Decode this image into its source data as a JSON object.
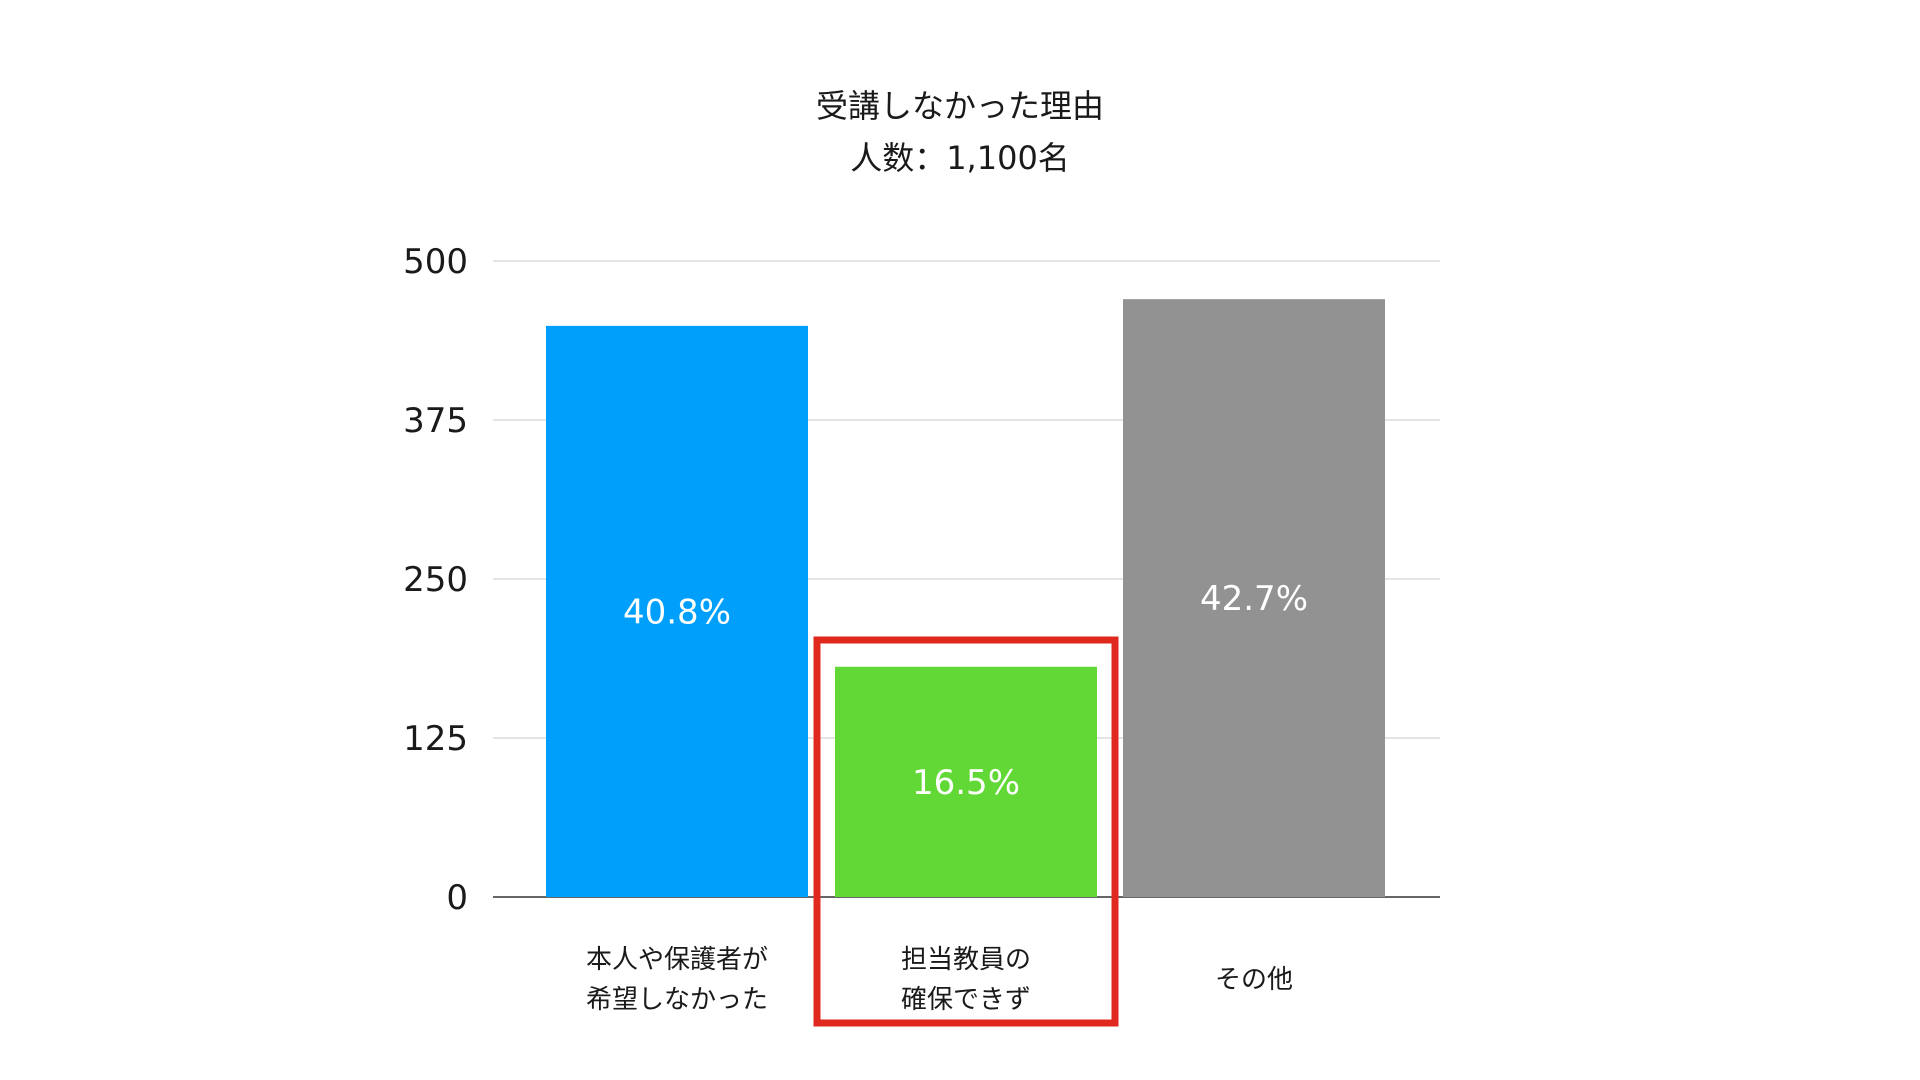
{
  "chart_data": {
    "type": "bar",
    "title": "受講しなかった理由",
    "subtitle": "人数：1,100名",
    "categories": [
      [
        "本人や保護者が",
        "希望しなかった"
      ],
      [
        "担当教員の",
        "確保できず"
      ],
      [
        "その他"
      ]
    ],
    "values": [
      449,
      181,
      470
    ],
    "data_labels": [
      "40.8%",
      "16.5%",
      "42.7%"
    ],
    "colors": [
      "#009ffc",
      "#61d836",
      "#929292"
    ],
    "ylim": [
      0,
      500
    ],
    "yticks": [
      0,
      125,
      250,
      375,
      500
    ],
    "grid": true,
    "xlabel": "",
    "ylabel": "",
    "highlight": {
      "category_index": 1,
      "color": "#e0281f"
    }
  }
}
